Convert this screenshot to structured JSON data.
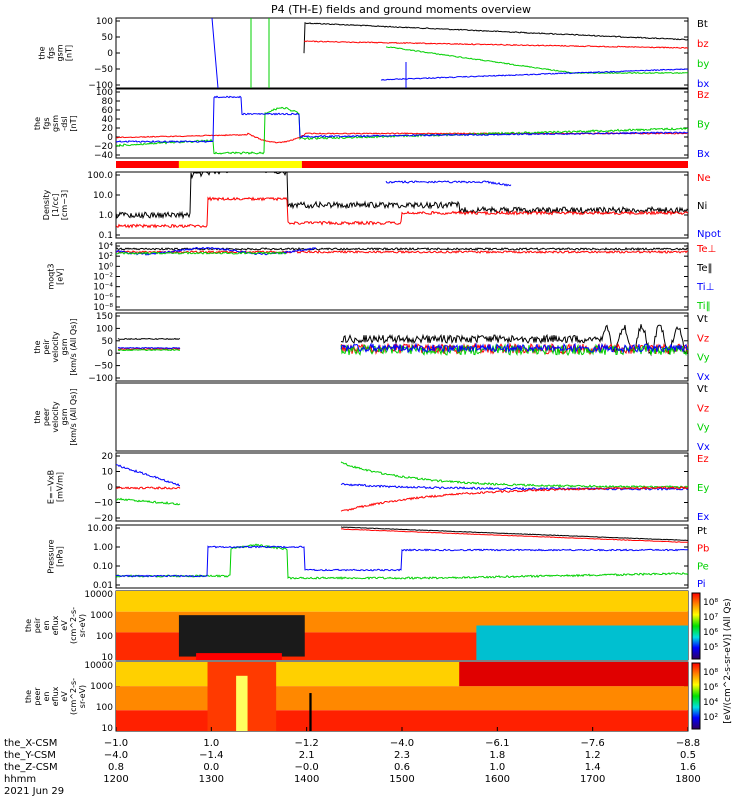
{
  "title": "P4 (TH-E) fields and ground moments overview",
  "date": "2021 Jun 29",
  "colors": {
    "black": "#000000",
    "red": "#ff0000",
    "green": "#00d000",
    "blue": "#0000ff"
  },
  "chart_data": [
    {
      "type": "line",
      "name": "fgs_gsm",
      "ylabel_lines": [
        "the",
        "fgs",
        "gsm",
        "[nT]"
      ],
      "ylim": [
        -100,
        100
      ],
      "ticks": [
        "100",
        "50",
        "0",
        "−50",
        "−100"
      ],
      "series": [
        {
          "name": "Bt",
          "color": "black"
        },
        {
          "name": "bz",
          "color": "red"
        },
        {
          "name": "by",
          "color": "green"
        },
        {
          "name": "bx",
          "color": "blue"
        }
      ]
    },
    {
      "type": "line",
      "name": "fgs_gsm_dsl",
      "ylabel_lines": [
        "the",
        "fgs",
        "gsm",
        "-dsl",
        "[nT]"
      ],
      "ylim": [
        -50,
        100
      ],
      "ticks": [
        "100",
        "80",
        "60",
        "40",
        "20",
        "0",
        "−20",
        "−40"
      ],
      "series": [
        {
          "name": "Bz",
          "color": "red"
        },
        {
          "name": "By",
          "color": "green"
        },
        {
          "name": "Bx",
          "color": "blue"
        }
      ]
    },
    {
      "type": "line",
      "name": "density",
      "ylabel_lines": [
        "Density",
        "[1/cc]",
        "[cm−3]"
      ],
      "scale": "log",
      "ticks": [
        "100.0",
        "10.0",
        "1.0",
        "0.1"
      ],
      "series": [
        {
          "name": "Ne",
          "color": "red"
        },
        {
          "name": "Ni",
          "color": "black"
        },
        {
          "name": "Npot",
          "color": "blue"
        }
      ]
    },
    {
      "type": "line",
      "name": "temperature",
      "ylabel_lines": [
        "moqt3",
        "[eV]"
      ],
      "scale": "log",
      "ticks": [
        "10⁴",
        "10²",
        "10⁰",
        "10⁻²",
        "10⁻⁴",
        "10⁻⁶",
        "10⁻⁸"
      ],
      "series": [
        {
          "name": "Te⊥",
          "color": "red"
        },
        {
          "name": "Te‖",
          "color": "black"
        },
        {
          "name": "Ti⊥",
          "color": "blue"
        },
        {
          "name": "Ti‖",
          "color": "green"
        }
      ]
    },
    {
      "type": "line",
      "name": "peir_velocity",
      "ylabel_lines": [
        "the",
        "peir",
        "velocity",
        "gsm",
        "[km/s (All Qs)]"
      ],
      "ylim": [
        -100,
        150
      ],
      "ticks": [
        "150",
        "100",
        "50",
        "0",
        "−50",
        "−100"
      ],
      "series": [
        {
          "name": "Vt",
          "color": "black"
        },
        {
          "name": "Vz",
          "color": "red"
        },
        {
          "name": "Vy",
          "color": "green"
        },
        {
          "name": "Vx",
          "color": "blue"
        }
      ]
    },
    {
      "type": "line",
      "name": "peer_velocity",
      "ylabel_lines": [
        "the",
        "peer",
        "velocity",
        "gsm",
        "[km/s (All Qs)]"
      ],
      "ticks": [],
      "series": [
        {
          "name": "Vt",
          "color": "black"
        },
        {
          "name": "Vz",
          "color": "red"
        },
        {
          "name": "Vy",
          "color": "green"
        },
        {
          "name": "Vx",
          "color": "blue"
        }
      ]
    },
    {
      "type": "line",
      "name": "efield",
      "ylabel_lines": [
        "E=−VxB",
        "[mV/m]"
      ],
      "ylim": [
        -20,
        20
      ],
      "ticks": [
        "20",
        "10",
        "0",
        "−10",
        "−20"
      ],
      "series": [
        {
          "name": "Ez",
          "color": "red"
        },
        {
          "name": "Ey",
          "color": "green"
        },
        {
          "name": "Ex",
          "color": "blue"
        }
      ]
    },
    {
      "type": "line",
      "name": "pressure",
      "ylabel_lines": [
        "Pressure",
        "[nPa]"
      ],
      "scale": "log",
      "ticks": [
        "10.00",
        "1.00",
        "0.10",
        "0.01"
      ],
      "series": [
        {
          "name": "Pt",
          "color": "black"
        },
        {
          "name": "Pb",
          "color": "red"
        },
        {
          "name": "Pe",
          "color": "green"
        },
        {
          "name": "Pi",
          "color": "blue"
        }
      ]
    },
    {
      "type": "heatmap",
      "name": "peir_en_eflux",
      "ylabel_lines": [
        "the",
        "peir",
        "en",
        "eflux",
        "eV",
        "(cm^2-s-",
        "sr-eV)"
      ],
      "scale": "log",
      "ticks": [
        "10000",
        "1000",
        "100",
        "10"
      ]
    },
    {
      "type": "heatmap",
      "name": "peer_en_eflux",
      "ylabel_lines": [
        "the",
        "peer",
        "en",
        "eflux",
        "eV",
        "(cm^2-s-",
        "sr-eV)"
      ],
      "scale": "log",
      "ticks": [
        "10000",
        "1000",
        "100",
        "10"
      ]
    }
  ],
  "colorbar": {
    "ticks_top": [
      "10⁸",
      "10⁷",
      "10⁶",
      "10⁵"
    ],
    "ticks_bottom": [
      "10⁸",
      "10⁶",
      "10⁴",
      "10²"
    ],
    "label": "[eV/(cm^2-s-sr-eV)] (All Qs)"
  },
  "x_axis": {
    "rows": [
      {
        "label": "the_X-CSM",
        "values": [
          "−1.0",
          "1.0",
          "−1.2",
          "−4.0",
          "−6.1",
          "−7.6",
          "−8.8"
        ]
      },
      {
        "label": "the_Y-CSM",
        "values": [
          "−4.0",
          "−1.4",
          "2.1",
          "2.3",
          "1.8",
          "1.2",
          "0.5"
        ]
      },
      {
        "label": "the_Z-CSM",
        "values": [
          "0.8",
          "0.0",
          "−0.0",
          "0.6",
          "1.0",
          "1.4",
          "1.6"
        ]
      },
      {
        "label": "hhmm",
        "values": [
          "1200",
          "1300",
          "1400",
          "1500",
          "1600",
          "1700",
          "1800"
        ]
      }
    ]
  },
  "region_bar": {
    "segments": [
      {
        "color": "red",
        "start": 0,
        "end": 0.11
      },
      {
        "color": "yellow",
        "start": 0.11,
        "end": 0.325
      },
      {
        "color": "red",
        "start": 0.325,
        "end": 1
      }
    ]
  }
}
